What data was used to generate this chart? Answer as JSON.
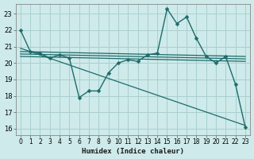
{
  "xlabel": "Humidex (Indice chaleur)",
  "bg_color": "#ceeaea",
  "grid_color": "#aacfcf",
  "line_color": "#1e6b6b",
  "xlim": [
    -0.5,
    23.5
  ],
  "ylim": [
    15.6,
    23.6
  ],
  "yticks": [
    16,
    17,
    18,
    19,
    20,
    21,
    22,
    23
  ],
  "xticks": [
    0,
    1,
    2,
    3,
    4,
    5,
    6,
    7,
    8,
    9,
    10,
    11,
    12,
    13,
    14,
    15,
    16,
    17,
    18,
    19,
    20,
    21,
    22,
    23
  ],
  "series": [
    {
      "x": [
        0,
        1,
        2,
        3,
        4,
        5,
        6,
        7,
        8,
        9,
        10,
        11,
        12,
        13,
        14,
        15,
        16,
        17,
        18,
        19,
        20,
        21,
        22,
        23
      ],
      "y": [
        22,
        20.7,
        20.6,
        20.3,
        20.5,
        20.3,
        17.9,
        18.3,
        18.3,
        19.4,
        20.0,
        20.2,
        20.1,
        20.5,
        20.6,
        23.3,
        22.4,
        22.8,
        21.5,
        20.4,
        20.0,
        20.4,
        18.7,
        16.1
      ],
      "marker": "D",
      "markersize": 2.5,
      "linewidth": 1.0
    },
    {
      "x": [
        0,
        23
      ],
      "y": [
        20.9,
        16.2
      ],
      "marker": null,
      "markersize": 0,
      "linewidth": 0.9
    },
    {
      "x": [
        0,
        23
      ],
      "y": [
        20.7,
        20.4
      ],
      "marker": null,
      "markersize": 0,
      "linewidth": 0.9
    },
    {
      "x": [
        0,
        23
      ],
      "y": [
        20.55,
        20.25
      ],
      "marker": null,
      "markersize": 0,
      "linewidth": 0.9
    },
    {
      "x": [
        0,
        23
      ],
      "y": [
        20.4,
        20.1
      ],
      "marker": null,
      "markersize": 0,
      "linewidth": 0.9
    }
  ]
}
